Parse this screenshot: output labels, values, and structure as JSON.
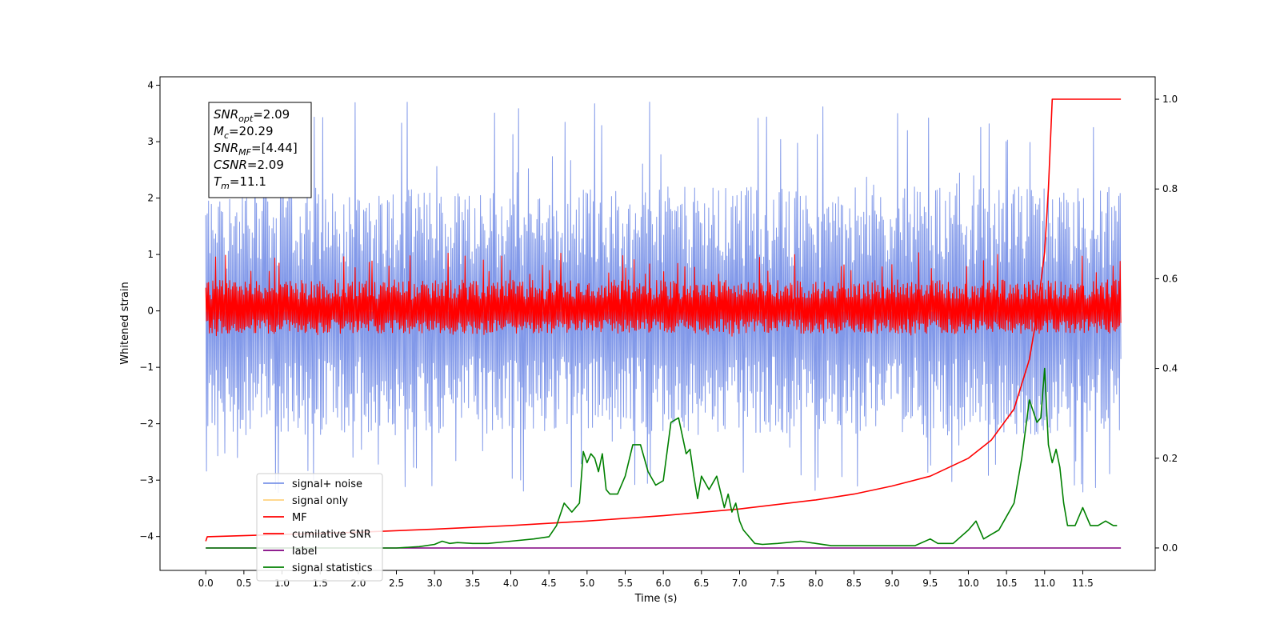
{
  "chart_data": {
    "type": "line",
    "title": "",
    "xlabel": "Time (s)",
    "ylabel": "Whitened strain",
    "xlim": [
      -0.6,
      12.45
    ],
    "ylim": [
      -4.6,
      4.15
    ],
    "y2lim": [
      -0.05,
      1.05
    ],
    "x_ticks": [
      "0.0",
      "0.5",
      "1.0",
      "1.5",
      "2.0",
      "2.5",
      "3.0",
      "3.5",
      "4.0",
      "4.5",
      "5.0",
      "5.5",
      "6.0",
      "6.5",
      "7.0",
      "7.5",
      "8.0",
      "8.5",
      "9.0",
      "9.5",
      "10.0",
      "10.5",
      "11.0",
      "11.5"
    ],
    "y_ticks": [
      "4",
      "3",
      "2",
      "1",
      "0",
      "−1",
      "−2",
      "−3",
      "−4"
    ],
    "y2_ticks": [
      "1.0",
      "0.8",
      "0.6",
      "0.4",
      "0.2",
      "0.0"
    ],
    "grid": false,
    "legend_position": "lower-left",
    "series": [
      {
        "name": "signal+ noise",
        "color": "#7b94e8",
        "axis": "left",
        "kind": "noise",
        "x_range": [
          0.0,
          12.0
        ],
        "points": 1300,
        "center": -0.05,
        "envelope": [
          -2.2,
          2.2
        ],
        "extremes": [
          -3.25,
          3.75
        ]
      },
      {
        "name": "signal only",
        "color": "#ffd27f",
        "axis": "left",
        "x": [
          0.0,
          12.0
        ],
        "values": [
          0.0,
          0.0
        ]
      },
      {
        "name": "MF",
        "color": "#ff0000",
        "axis": "left",
        "kind": "noise",
        "x_range": [
          0.0,
          12.0
        ],
        "points": 1300,
        "center": 0.0,
        "envelope": [
          -0.4,
          0.55
        ],
        "extremes": [
          -0.45,
          1.05
        ]
      },
      {
        "name": "cumilative SNR",
        "color": "#ff0000",
        "axis": "right",
        "x": [
          0.0,
          0.02,
          1.0,
          2.0,
          3.0,
          4.0,
          5.0,
          6.0,
          7.0,
          8.0,
          8.5,
          9.0,
          9.5,
          10.0,
          10.3,
          10.6,
          10.8,
          10.9,
          11.0,
          11.05,
          11.1,
          12.0
        ],
        "values": [
          0.015,
          0.025,
          0.03,
          0.035,
          0.042,
          0.05,
          0.06,
          0.072,
          0.087,
          0.107,
          0.12,
          0.138,
          0.16,
          0.2,
          0.24,
          0.31,
          0.42,
          0.52,
          0.66,
          0.8,
          1.0,
          1.0
        ]
      },
      {
        "name": "label",
        "color": "#800080",
        "axis": "right",
        "x": [
          0.0,
          12.0
        ],
        "values": [
          0.0,
          0.0
        ]
      },
      {
        "name": "signal statistics",
        "color": "#008000",
        "axis": "right",
        "x": [
          0.0,
          0.5,
          1.0,
          1.5,
          2.0,
          2.5,
          2.8,
          3.0,
          3.1,
          3.2,
          3.3,
          3.5,
          3.7,
          4.0,
          4.3,
          4.5,
          4.6,
          4.7,
          4.8,
          4.9,
          4.95,
          5.0,
          5.05,
          5.1,
          5.15,
          5.2,
          5.25,
          5.3,
          5.4,
          5.5,
          5.6,
          5.7,
          5.8,
          5.9,
          6.0,
          6.1,
          6.2,
          6.3,
          6.35,
          6.4,
          6.45,
          6.5,
          6.6,
          6.7,
          6.8,
          6.85,
          6.9,
          6.95,
          7.0,
          7.05,
          7.1,
          7.2,
          7.3,
          7.5,
          7.8,
          8.0,
          8.2,
          8.5,
          9.0,
          9.3,
          9.5,
          9.6,
          9.8,
          10.0,
          10.1,
          10.2,
          10.3,
          10.4,
          10.5,
          10.6,
          10.7,
          10.8,
          10.9,
          10.95,
          11.0,
          11.05,
          11.1,
          11.15,
          11.2,
          11.25,
          11.3,
          11.4,
          11.5,
          11.6,
          11.7,
          11.8,
          11.9,
          11.95
        ],
        "values": [
          0.0,
          0.0,
          0.0,
          0.0,
          0.0,
          0.0,
          0.003,
          0.008,
          0.015,
          0.01,
          0.012,
          0.01,
          0.01,
          0.015,
          0.02,
          0.025,
          0.05,
          0.1,
          0.08,
          0.1,
          0.215,
          0.19,
          0.21,
          0.2,
          0.17,
          0.21,
          0.13,
          0.12,
          0.12,
          0.16,
          0.23,
          0.23,
          0.17,
          0.14,
          0.15,
          0.28,
          0.29,
          0.21,
          0.22,
          0.16,
          0.11,
          0.16,
          0.13,
          0.16,
          0.09,
          0.12,
          0.08,
          0.1,
          0.06,
          0.04,
          0.03,
          0.01,
          0.008,
          0.01,
          0.015,
          0.01,
          0.005,
          0.005,
          0.005,
          0.005,
          0.02,
          0.01,
          0.01,
          0.04,
          0.06,
          0.02,
          0.03,
          0.04,
          0.07,
          0.1,
          0.2,
          0.33,
          0.28,
          0.29,
          0.4,
          0.23,
          0.19,
          0.22,
          0.18,
          0.1,
          0.05,
          0.05,
          0.09,
          0.05,
          0.05,
          0.06,
          0.05,
          0.05
        ]
      }
    ],
    "annotation": {
      "lines": [
        {
          "main": "SNR",
          "sub": "opt",
          "rest": "=2.09"
        },
        {
          "main": "M",
          "sub": "c",
          "rest": "=20.29"
        },
        {
          "main": "SNR",
          "sub": "MF",
          "rest": "=[4.44]"
        },
        {
          "main": "CSNR",
          "sub": "",
          "rest": "=2.09"
        },
        {
          "main": "T",
          "sub": "m",
          "rest": "=11.1"
        }
      ]
    }
  }
}
